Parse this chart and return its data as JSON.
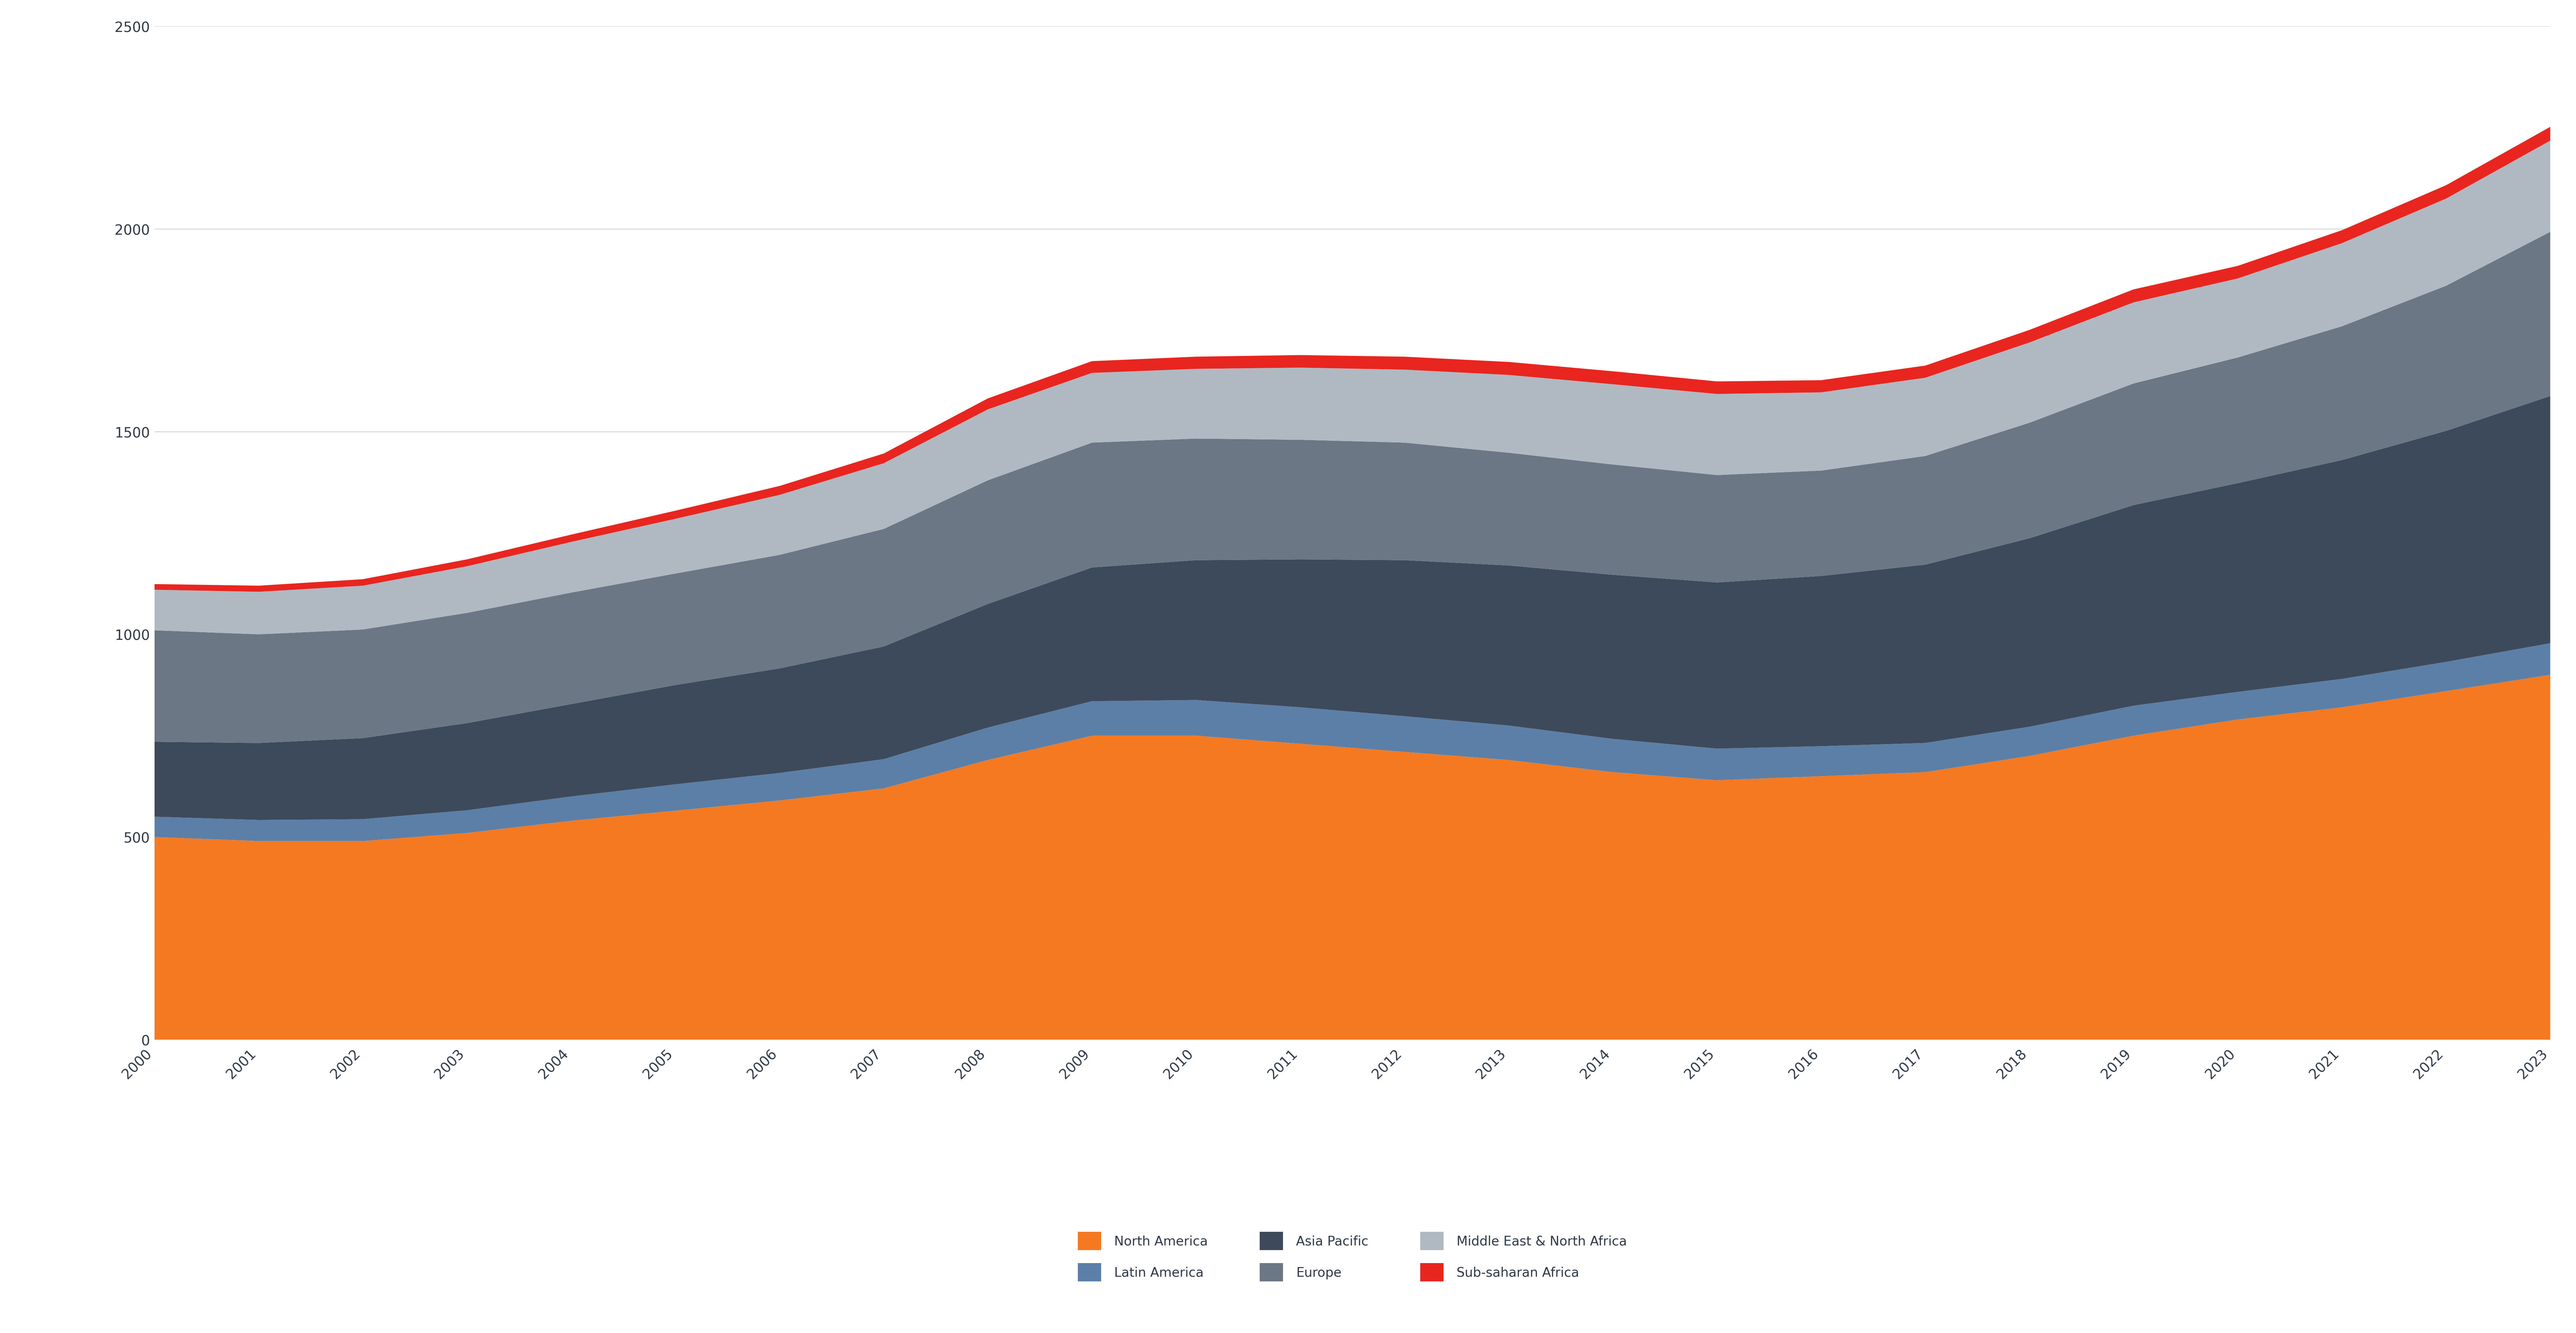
{
  "years": [
    2000,
    2001,
    2002,
    2003,
    2004,
    2005,
    2006,
    2007,
    2008,
    2009,
    2010,
    2011,
    2012,
    2013,
    2014,
    2015,
    2016,
    2017,
    2018,
    2019,
    2020,
    2021,
    2022,
    2023
  ],
  "north_america": [
    500,
    490,
    490,
    510,
    540,
    565,
    590,
    620,
    690,
    750,
    750,
    730,
    710,
    690,
    660,
    640,
    650,
    660,
    700,
    750,
    790,
    820,
    860,
    900
  ],
  "latin_america": [
    50,
    52,
    54,
    56,
    60,
    65,
    68,
    72,
    80,
    85,
    88,
    90,
    88,
    85,
    82,
    78,
    74,
    72,
    72,
    74,
    68,
    70,
    72,
    78
  ],
  "asia_pacific": [
    185,
    190,
    200,
    215,
    228,
    245,
    258,
    278,
    305,
    330,
    345,
    365,
    385,
    395,
    405,
    410,
    420,
    440,
    465,
    495,
    515,
    540,
    570,
    610
  ],
  "europe": [
    275,
    268,
    268,
    272,
    275,
    275,
    280,
    290,
    305,
    308,
    300,
    295,
    290,
    278,
    272,
    265,
    260,
    268,
    285,
    300,
    310,
    330,
    358,
    405
  ],
  "middle_east_north_africa": [
    100,
    105,
    108,
    115,
    125,
    135,
    148,
    162,
    175,
    172,
    172,
    178,
    180,
    192,
    198,
    200,
    193,
    193,
    198,
    200,
    195,
    205,
    215,
    225
  ],
  "sub_saharan_africa": [
    14,
    15,
    16,
    17,
    18,
    20,
    22,
    24,
    27,
    29,
    30,
    31,
    32,
    32,
    32,
    31,
    30,
    30,
    31,
    32,
    31,
    32,
    33,
    34
  ],
  "colors": {
    "north_america": "#F47920",
    "latin_america": "#5B7FA6",
    "asia_pacific": "#3D4A5C",
    "europe": "#6B7785",
    "middle_east_north_africa": "#B0B8C1",
    "sub_saharan_africa": "#E8251F"
  },
  "legend": [
    {
      "label": "North America",
      "color": "#F47920"
    },
    {
      "label": "Latin America",
      "color": "#5B7FA6"
    },
    {
      "label": "Asia Pacific",
      "color": "#3D4A5C"
    },
    {
      "label": "Europe",
      "color": "#6B7785"
    },
    {
      "label": "Middle East & North Africa",
      "color": "#B0B8C1"
    },
    {
      "label": "Sub-saharan Africa",
      "color": "#E8251F"
    }
  ],
  "ylim": [
    0,
    2500
  ],
  "yticks": [
    0,
    500,
    1000,
    1500,
    2000,
    2500
  ],
  "background_color": "#ffffff",
  "text_color": "#2E3A47",
  "grid_color": "#CCCCCC",
  "tick_fontsize": 30,
  "legend_fontsize": 28
}
